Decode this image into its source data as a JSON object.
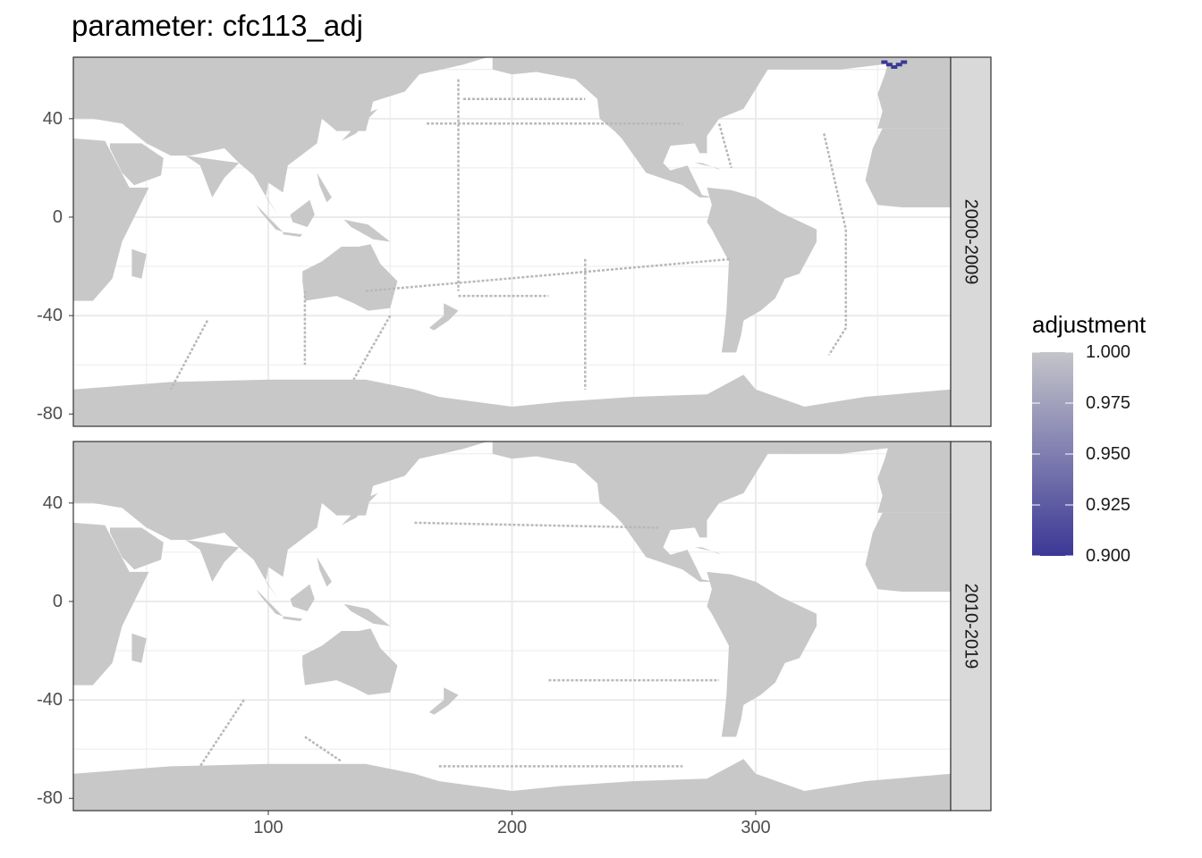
{
  "title": "parameter: cfc113_adj",
  "chart_data": {
    "type": "heatmap",
    "title": "parameter: cfc113_adj",
    "xlabel": "",
    "ylabel": "",
    "x_ticks": [
      100,
      200,
      300
    ],
    "y_ticks": [
      40,
      0,
      -40,
      -80
    ],
    "xlim": [
      20,
      380
    ],
    "ylim": [
      -85,
      65
    ],
    "grid": true,
    "facets": [
      {
        "label": "2000-2009",
        "highlight_cells": [
          {
            "x": 353,
            "y": 63,
            "value": 0.9
          },
          {
            "x": 355,
            "y": 62,
            "value": 0.9
          },
          {
            "x": 357,
            "y": 61,
            "value": 0.9
          },
          {
            "x": 359,
            "y": 62,
            "value": 0.9
          },
          {
            "x": 361,
            "y": 63,
            "value": 0.9
          }
        ]
      },
      {
        "label": "2010-2019",
        "highlight_cells": []
      }
    ],
    "legend": {
      "title": "adjustment",
      "position": "right",
      "ticks": [
        "1.000",
        "0.975",
        "0.950",
        "0.925",
        "0.900"
      ],
      "range": [
        0.9,
        1.0
      ],
      "color_low": "#3b3896",
      "color_high": "#c4c4c9"
    },
    "colors": {
      "land": "#c8c8c8",
      "strip": "#d9d9d9",
      "grid": "#ebebeb",
      "track": "#b8b8b8",
      "highlight": "#3b3896"
    }
  }
}
